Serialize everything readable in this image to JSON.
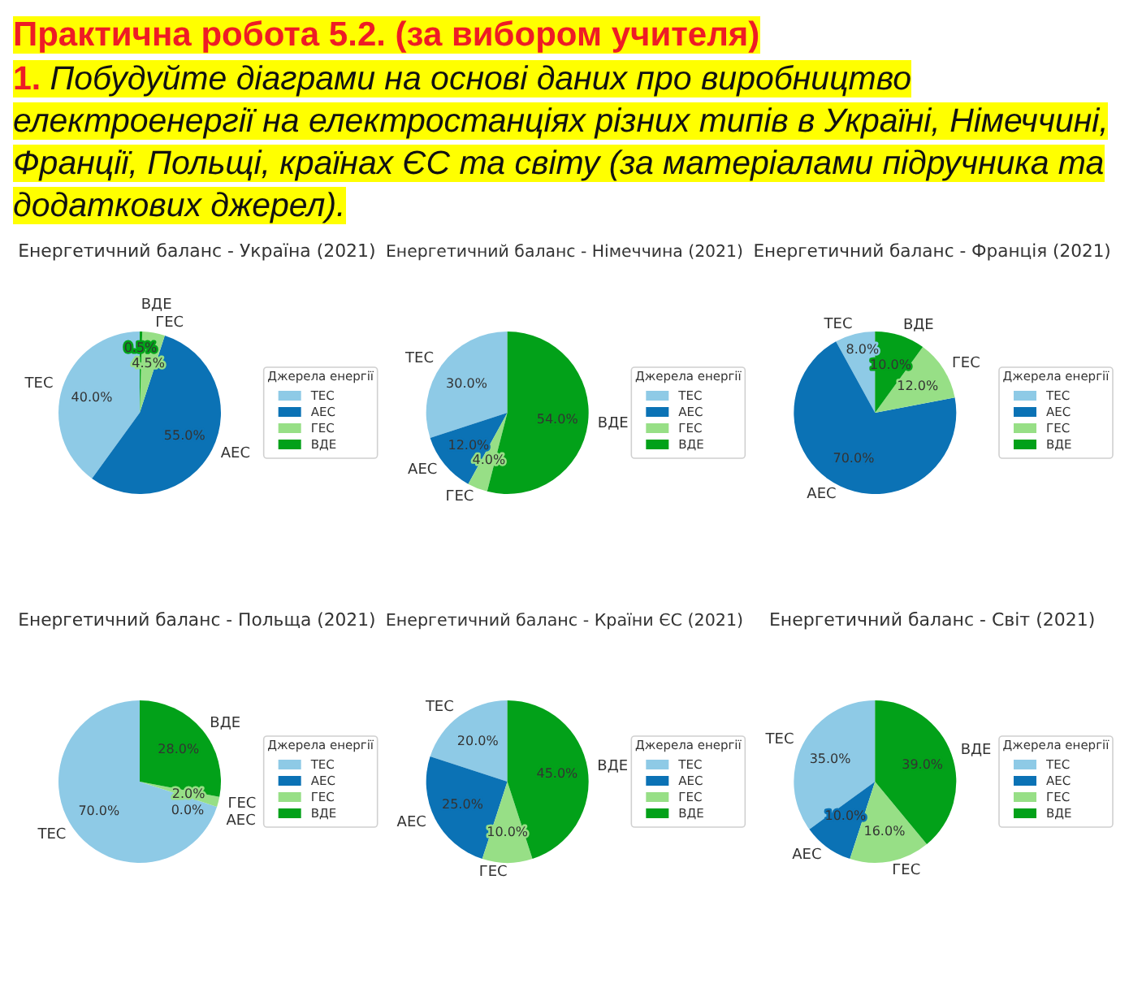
{
  "chart_data": [
    {
      "type": "other",
      "title": "Практична робота 5.2. (за вибором учителя)",
      "subtitle": "1. Побудуйте діаграми на основі даних про виробництво електроенергії на електростанціях різних типів в Україні, Німеччині, Франції, Польщі, країнах ЄС та світу (за матеріалами підручника та додаткових джерел)."
    },
    {
      "type": "pie",
      "title": "Енергетичний баланс - Україна (2021)",
      "categories": [
        "ТЕС",
        "АЕС",
        "ГЕС",
        "ВДЕ"
      ],
      "values": [
        40,
        55,
        4.5,
        0.5
      ],
      "value_labels": [
        "40.0%",
        "55.0%",
        "4.5%",
        "0.5%"
      ],
      "colors": [
        "#8ecae6",
        "#0b72b5",
        "#97df86",
        "#02a119"
      ],
      "legend": "right",
      "legend_title": "Джерела енергії"
    },
    {
      "type": "pie",
      "title": "Енергетичний баланс - Німеччина (2021)",
      "categories": [
        "ТЕС",
        "АЕС",
        "ГЕС",
        "ВДЕ"
      ],
      "values": [
        30,
        12,
        4,
        54
      ],
      "value_labels": [
        "30.0%",
        "12.0%",
        "4.0%",
        "54.0%"
      ],
      "colors": [
        "#8ecae6",
        "#0b72b5",
        "#97df86",
        "#02a119"
      ],
      "legend": "right",
      "legend_title": "Джерела енергії"
    },
    {
      "type": "pie",
      "title": "Енергетичний баланс - Франція (2021)",
      "categories": [
        "ТЕС",
        "АЕС",
        "ГЕС",
        "ВДЕ"
      ],
      "values": [
        8,
        70,
        12,
        10
      ],
      "value_labels": [
        "8.0%",
        "70.0%",
        "12.0%",
        "10.0%"
      ],
      "colors": [
        "#8ecae6",
        "#0b72b5",
        "#97df86",
        "#02a119"
      ],
      "legend": "right",
      "legend_title": "Джерела енергії"
    },
    {
      "type": "pie",
      "title": "Енергетичний баланс - Польща (2021)",
      "categories": [
        "ТЕС",
        "АЕС",
        "ГЕС",
        "ВДЕ"
      ],
      "values": [
        70,
        0,
        2,
        28
      ],
      "value_labels": [
        "70.0%",
        "0.0%",
        "2.0%",
        "28.0%"
      ],
      "colors": [
        "#8ecae6",
        "#0b72b5",
        "#97df86",
        "#02a119"
      ],
      "legend": "right",
      "legend_title": "Джерела енергії"
    },
    {
      "type": "pie",
      "title": "Енергетичний баланс - Країни ЄС (2021)",
      "categories": [
        "ТЕС",
        "АЕС",
        "ГЕС",
        "ВДЕ"
      ],
      "values": [
        20,
        25,
        10,
        45
      ],
      "value_labels": [
        "20.0%",
        "25.0%",
        "10.0%",
        "45.0%"
      ],
      "colors": [
        "#8ecae6",
        "#0b72b5",
        "#97df86",
        "#02a119"
      ],
      "legend": "right",
      "legend_title": "Джерела енергії"
    },
    {
      "type": "pie",
      "title": "Енергетичний баланс - Світ (2021)",
      "categories": [
        "ТЕС",
        "АЕС",
        "ГЕС",
        "ВДЕ"
      ],
      "values": [
        35,
        10,
        16,
        39
      ],
      "value_labels": [
        "35.0%",
        "10.0%",
        "16.0%",
        "39.0%"
      ],
      "colors": [
        "#8ecae6",
        "#0b72b5",
        "#97df86",
        "#02a119"
      ],
      "legend": "right",
      "legend_title": "Джерела енергії"
    }
  ]
}
